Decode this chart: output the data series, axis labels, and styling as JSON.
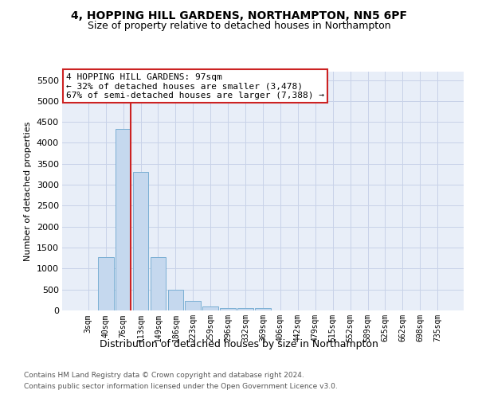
{
  "title": "4, HOPPING HILL GARDENS, NORTHAMPTON, NN5 6PF",
  "subtitle": "Size of property relative to detached houses in Northampton",
  "xlabel": "Distribution of detached houses by size in Northampton",
  "ylabel": "Number of detached properties",
  "bar_color": "#c5d8ee",
  "bar_edge_color": "#7bafd4",
  "background_color": "#e8eef8",
  "grid_color": "#c8d2e8",
  "categories": [
    "3sqm",
    "40sqm",
    "76sqm",
    "113sqm",
    "149sqm",
    "186sqm",
    "223sqm",
    "259sqm",
    "296sqm",
    "332sqm",
    "369sqm",
    "406sqm",
    "442sqm",
    "479sqm",
    "515sqm",
    "552sqm",
    "589sqm",
    "625sqm",
    "662sqm",
    "698sqm",
    "735sqm"
  ],
  "values": [
    0,
    1270,
    4330,
    3300,
    1280,
    490,
    220,
    90,
    60,
    55,
    60,
    0,
    0,
    0,
    0,
    0,
    0,
    0,
    0,
    0,
    0
  ],
  "ylim": [
    0,
    5700
  ],
  "yticks": [
    0,
    500,
    1000,
    1500,
    2000,
    2500,
    3000,
    3500,
    4000,
    4500,
    5000,
    5500
  ],
  "property_label": "4 HOPPING HILL GARDENS: 97sqm",
  "arrow_left_text": "← 32% of detached houses are smaller (3,478)",
  "arrow_right_text": "67% of semi-detached houses are larger (7,388) →",
  "vline_x_index": 2.45,
  "footer_line1": "Contains HM Land Registry data © Crown copyright and database right 2024.",
  "footer_line2": "Contains public sector information licensed under the Open Government Licence v3.0.",
  "annotation_box_color": "#cc2222",
  "vline_color": "#cc2222"
}
